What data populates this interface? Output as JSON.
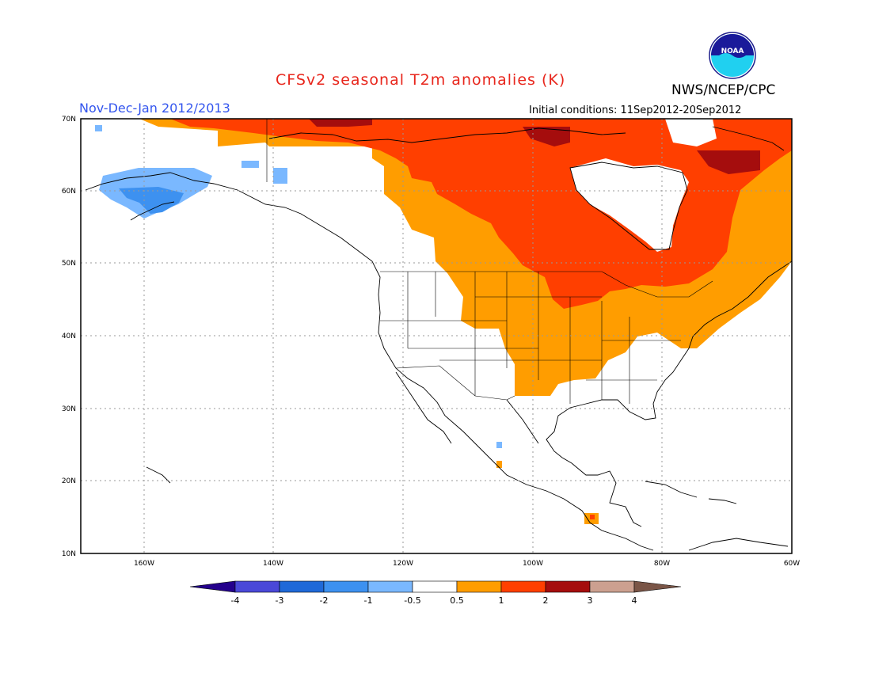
{
  "header": {
    "title": "CFSv2 seasonal T2m anomalies (K)",
    "period": "Nov-Dec-Jan 2012/2013",
    "agency": "NWS/NCEP/CPC",
    "initial_conditions": "Initial conditions: 11Sep2012-20Sep2012",
    "logo_text": "NOAA"
  },
  "map": {
    "lat_labels": [
      "70N",
      "60N",
      "50N",
      "40N",
      "30N",
      "20N",
      "10N"
    ],
    "lon_labels": [
      "160W",
      "140W",
      "120W",
      "100W",
      "80W",
      "60W"
    ],
    "grid": "dotted"
  },
  "colorbar": {
    "labels": [
      "-4",
      "-3",
      "-2",
      "-1",
      "-0.5",
      "0.5",
      "1",
      "2",
      "3",
      "4"
    ],
    "colors": {
      "below_neg4": "#24008c",
      "neg4_neg3": "#4a48d8",
      "neg3_neg2": "#1f69d8",
      "neg2_neg1": "#3d91f0",
      "neg1_neg05": "#7ab8ff",
      "neutral": "#ffffff",
      "p05_p1": "#ff9d00",
      "p1_p2": "#ff3f00",
      "p2_p3": "#a50d0d",
      "p3_p4": "#cca090",
      "above_p4": "#7a5547"
    }
  }
}
